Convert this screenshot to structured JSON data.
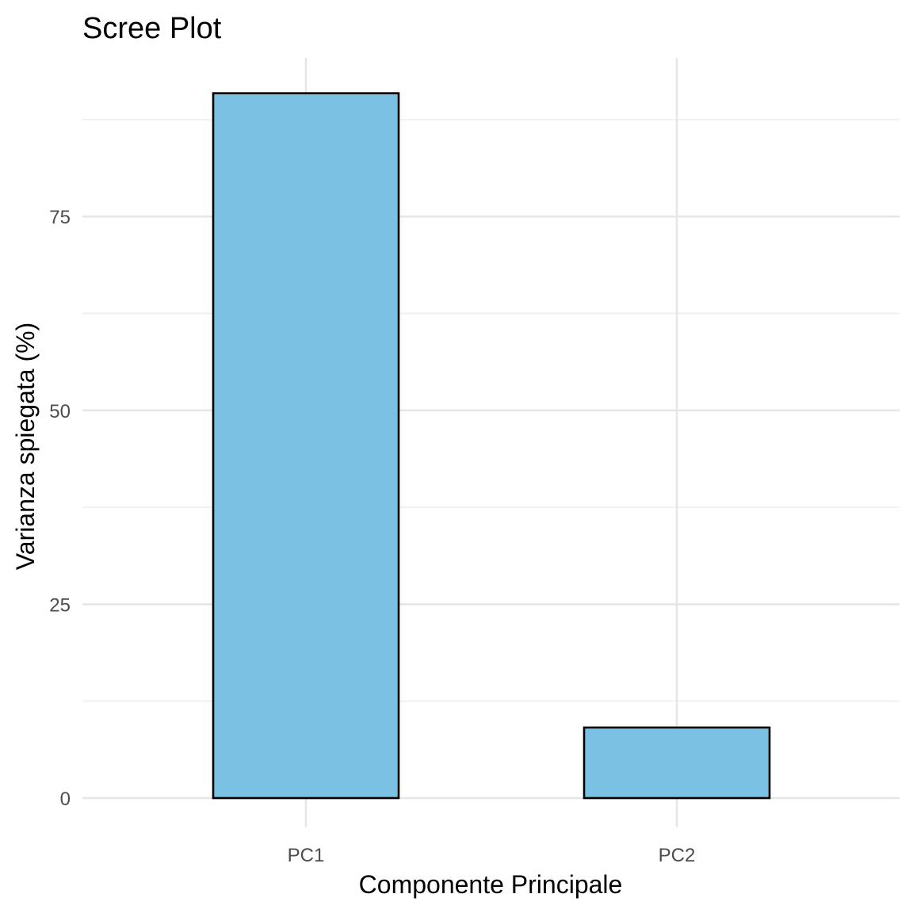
{
  "chart_data": {
    "type": "bar",
    "title": "Scree Plot",
    "xlabel": "Componente Principale",
    "ylabel": "Varianza spiegata (%)",
    "categories": [
      "PC1",
      "PC2"
    ],
    "values": [
      90.9,
      9.1
    ],
    "ylim": [
      0,
      95.5
    ],
    "yticks": [
      0,
      25,
      50,
      75
    ],
    "yticks_labels": [
      "0",
      "25",
      "50",
      "75"
    ],
    "y_minor_ticks": [
      12.5,
      37.5,
      62.5,
      87.5
    ],
    "grid": true,
    "legend": "none",
    "bar_fill": "#7AC1E4",
    "bar_outline": "#000000"
  }
}
